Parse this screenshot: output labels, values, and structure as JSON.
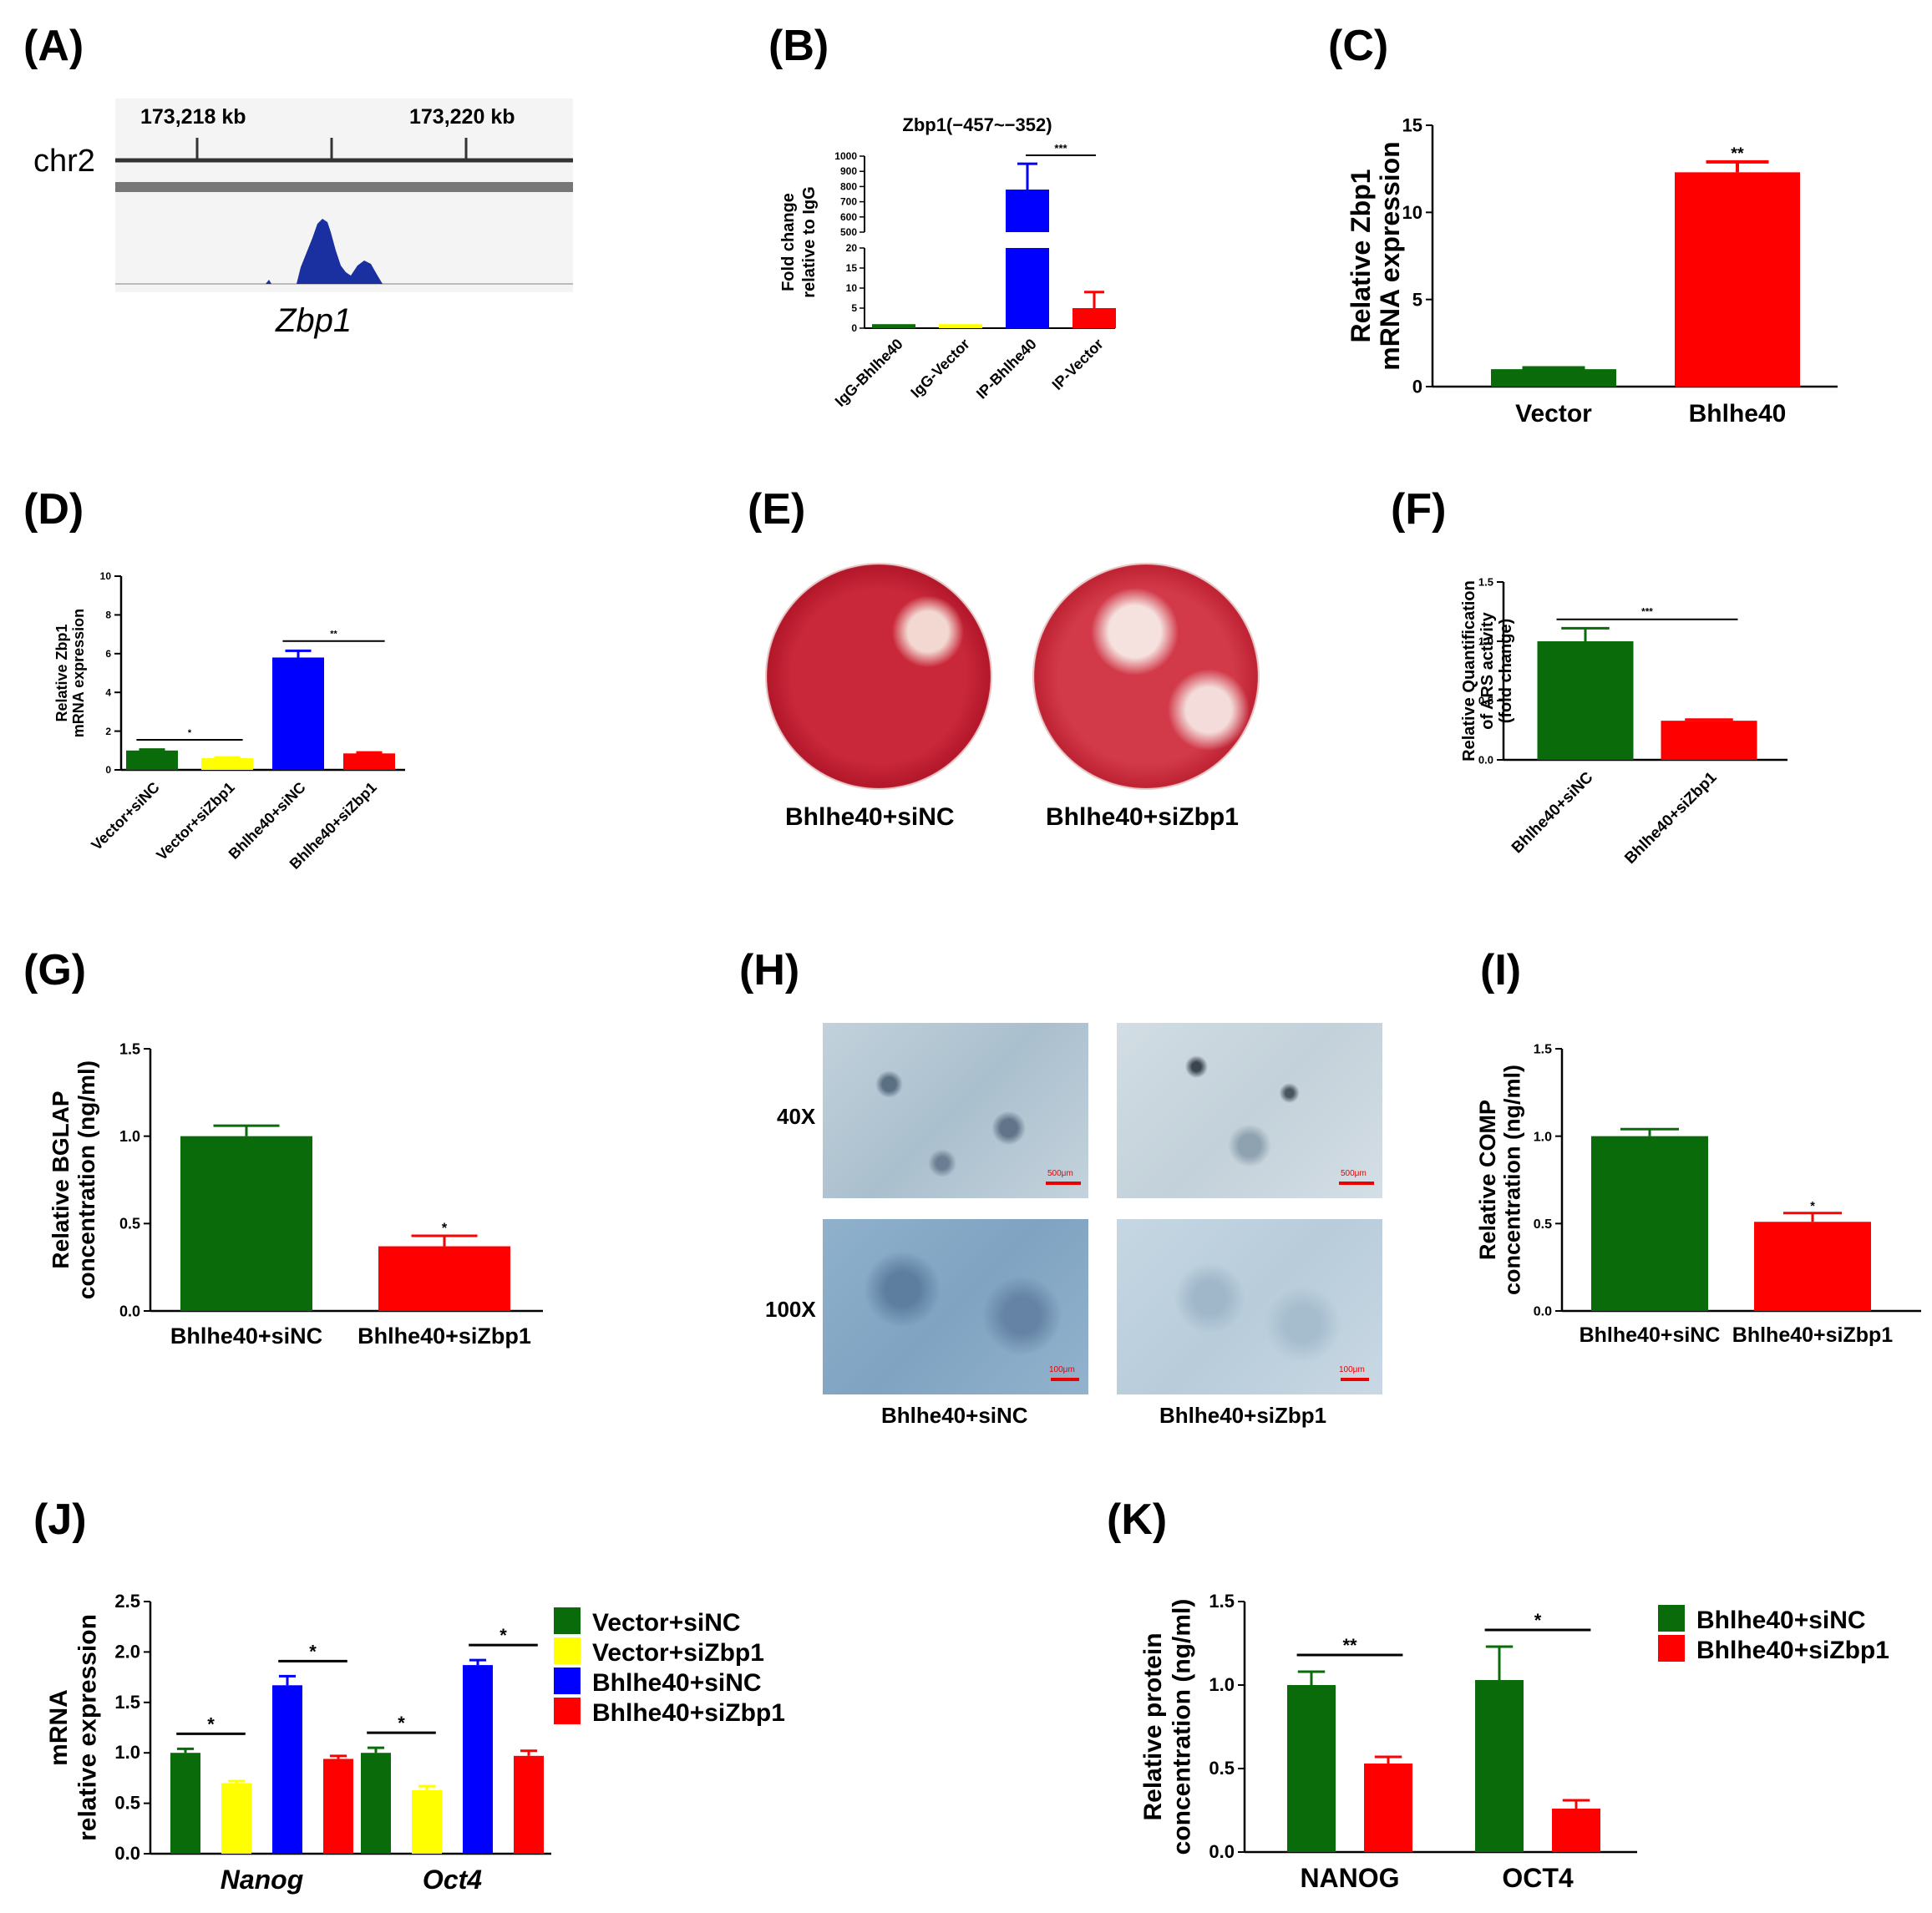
{
  "panels": {
    "A": "(A)",
    "B": "(B)",
    "C": "(C)",
    "D": "(D)",
    "E": "(E)",
    "F": "(F)",
    "G": "(G)",
    "H": "(H)",
    "I": "(I)",
    "J": "(J)",
    "K": "(K)"
  },
  "panel_a": {
    "chrom": "chr2",
    "ticks": [
      "173,218 kb",
      "173,220 kb"
    ],
    "gene": "Zbp1"
  },
  "panel_e": {
    "labels": [
      "Bhlhe40+siNC",
      "Bhlhe40+siZbp1"
    ]
  },
  "panel_h": {
    "rows": [
      "40X",
      "100X"
    ],
    "cols": [
      "Bhlhe40+siNC",
      "Bhlhe40+siZbp1"
    ],
    "scale": [
      "500μm",
      "500μm",
      "100μm",
      "100μm"
    ]
  },
  "colors": {
    "green": "#0a6b0a",
    "yellow": "#ffff00",
    "blue": "#0000ff",
    "red": "#ff0000"
  },
  "chart_data": [
    {
      "id": "B",
      "type": "bar",
      "title": "Zbp1(−457~−352)",
      "ylabel": [
        "Fold change",
        "relative to IgG"
      ],
      "categories": [
        "IgG-Bhlhe40",
        "IgG-Vector",
        "IP-Bhlhe40",
        "IP-Vector"
      ],
      "values": [
        1,
        1,
        780,
        5
      ],
      "errors": [
        0,
        0,
        170,
        4
      ],
      "colors": [
        "green",
        "yellow",
        "blue",
        "red"
      ],
      "yticks_lower": [
        "0",
        "5",
        "10",
        "15",
        "20"
      ],
      "yticks_upper": [
        "500",
        "600",
        "700",
        "800",
        "900",
        "1000"
      ],
      "axis_break": true,
      "significance": [
        {
          "from": 2,
          "to": 3,
          "label": "***"
        }
      ]
    },
    {
      "id": "C",
      "type": "bar",
      "ylabel": [
        "Relative Zbp1",
        "mRNA expression"
      ],
      "categories": [
        "Vector",
        "Bhlhe40"
      ],
      "values": [
        1.0,
        12.3
      ],
      "errors": [
        0.08,
        0.6
      ],
      "colors": [
        "green",
        "red"
      ],
      "ylim": [
        0,
        15
      ],
      "yticks": [
        "0",
        "5",
        "10",
        "15"
      ],
      "significance": [
        {
          "bar": 1,
          "label": "**"
        }
      ]
    },
    {
      "id": "D",
      "type": "bar",
      "ylabel": [
        "Relative Zbp1",
        "mRNA expression"
      ],
      "categories": [
        "Vector+siNC",
        "Vector+siZbp1",
        "Bhlhe40+siNC",
        "Bhlhe40+siZbp1"
      ],
      "values": [
        1.0,
        0.6,
        5.8,
        0.85
      ],
      "errors": [
        0.05,
        0.04,
        0.35,
        0.05
      ],
      "colors": [
        "green",
        "yellow",
        "blue",
        "red"
      ],
      "ylim": [
        0,
        10
      ],
      "yticks": [
        "0",
        "2",
        "4",
        "6",
        "8",
        "10"
      ],
      "significance": [
        {
          "from": 0,
          "to": 1,
          "label": "*"
        },
        {
          "from": 2,
          "to": 3,
          "label": "**"
        }
      ]
    },
    {
      "id": "F",
      "type": "bar",
      "ylabel": [
        "Relative Quantification",
        "of ARS activity",
        "(fold change)"
      ],
      "categories": [
        "Bhlhe40+siNC",
        "Bhlhe40+siZbp1"
      ],
      "values": [
        1.0,
        0.33
      ],
      "errors": [
        0.11,
        0.01
      ],
      "colors": [
        "green",
        "red"
      ],
      "ylim": [
        0,
        1.5
      ],
      "yticks": [
        "0.0",
        "0.5",
        "1.0",
        "1.5"
      ],
      "significance": [
        {
          "from": 0,
          "to": 1,
          "label": "***"
        }
      ]
    },
    {
      "id": "G",
      "type": "bar",
      "ylabel": [
        "Relative BGLAP",
        "concentration (ng/ml)"
      ],
      "categories": [
        "Bhlhe40+siNC",
        "Bhlhe40+siZbp1"
      ],
      "values": [
        1.0,
        0.37
      ],
      "errors": [
        0.06,
        0.06
      ],
      "colors": [
        "green",
        "red"
      ],
      "ylim": [
        0,
        1.5
      ],
      "yticks": [
        "0.0",
        "0.5",
        "1.0",
        "1.5"
      ],
      "significance": [
        {
          "bar": 1,
          "label": "*"
        }
      ]
    },
    {
      "id": "I",
      "type": "bar",
      "ylabel": [
        "Relative COMP",
        "concentration (ng/ml)"
      ],
      "categories": [
        "Bhlhe40+siNC",
        "Bhlhe40+siZbp1"
      ],
      "values": [
        1.0,
        0.51
      ],
      "errors": [
        0.04,
        0.05
      ],
      "colors": [
        "green",
        "red"
      ],
      "ylim": [
        0,
        1.5
      ],
      "yticks": [
        "0.0",
        "0.5",
        "1.0",
        "1.5"
      ],
      "significance": [
        {
          "bar": 1,
          "label": "*"
        }
      ]
    },
    {
      "id": "J",
      "type": "bar",
      "ylabel": [
        "mRNA",
        "relative expression"
      ],
      "categories": [
        "Nanog",
        "Oct4"
      ],
      "series": [
        {
          "name": "Vector+siNC",
          "values": [
            1.0,
            1.0
          ],
          "errors": [
            0.04,
            0.05
          ],
          "color": "green"
        },
        {
          "name": "Vector+siZbp1",
          "values": [
            0.7,
            0.63
          ],
          "errors": [
            0.02,
            0.04
          ],
          "color": "yellow"
        },
        {
          "name": "Bhlhe40+siNC",
          "values": [
            1.67,
            1.87
          ],
          "errors": [
            0.09,
            0.05
          ],
          "color": "blue"
        },
        {
          "name": "Bhlhe40+siZbp1",
          "values": [
            0.94,
            0.97
          ],
          "errors": [
            0.03,
            0.05
          ],
          "color": "red"
        }
      ],
      "ylim": [
        0,
        2.5
      ],
      "yticks": [
        "0.0",
        "0.5",
        "1.0",
        "1.5",
        "2.0",
        "2.5"
      ],
      "legend": "right",
      "significance": [
        {
          "group": 0,
          "from": 0,
          "to": 1,
          "label": "*"
        },
        {
          "group": 0,
          "from": 2,
          "to": 3,
          "label": "*"
        },
        {
          "group": 1,
          "from": 0,
          "to": 1,
          "label": "*"
        },
        {
          "group": 1,
          "from": 2,
          "to": 3,
          "label": "*"
        }
      ]
    },
    {
      "id": "K",
      "type": "bar",
      "ylabel": [
        "Relative protein",
        "concentration (ng/ml)"
      ],
      "categories": [
        "NANOG",
        "OCT4"
      ],
      "series": [
        {
          "name": "Bhlhe40+siNC",
          "values": [
            1.0,
            1.03
          ],
          "errors": [
            0.08,
            0.2
          ],
          "color": "green"
        },
        {
          "name": "Bhlhe40+siZbp1",
          "values": [
            0.53,
            0.26
          ],
          "errors": [
            0.04,
            0.05
          ],
          "color": "red"
        }
      ],
      "ylim": [
        0,
        1.5
      ],
      "yticks": [
        "0.0",
        "0.5",
        "1.0",
        "1.5"
      ],
      "legend": "right",
      "significance": [
        {
          "group": 0,
          "from": 0,
          "to": 1,
          "label": "**"
        },
        {
          "group": 1,
          "from": 0,
          "to": 1,
          "label": "*"
        }
      ]
    }
  ]
}
